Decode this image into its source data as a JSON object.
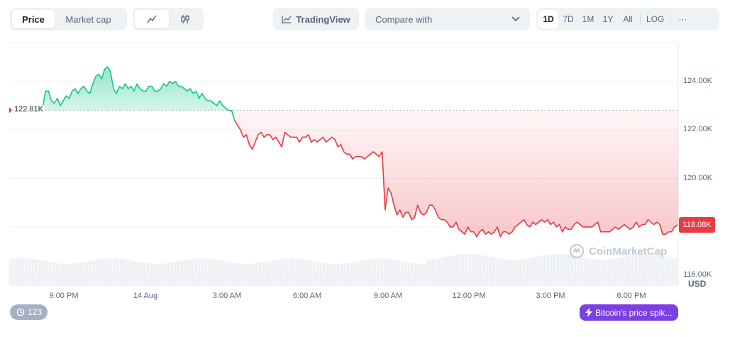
{
  "toolbar": {
    "metric_tabs": [
      {
        "label": "Price",
        "active": true
      },
      {
        "label": "Market cap",
        "active": false
      }
    ],
    "chart_type_icons": [
      "line-chart-icon",
      "candlestick-icon"
    ],
    "tradingview_label": "TradingView",
    "compare_label": "Compare with",
    "ranges": [
      "1D",
      "7D",
      "1M",
      "1Y",
      "All"
    ],
    "active_range": "1D",
    "log_label": "LOG",
    "more_label": "···"
  },
  "chart_data": {
    "type": "line",
    "y_ticks": [
      "124.00K",
      "122.00K",
      "120.00K",
      "118.00K",
      "116.00K"
    ],
    "x_ticks": [
      "9:00 PM",
      "14 Aug",
      "3:00 AM",
      "6:00 AM",
      "9:00 AM",
      "12:00 PM",
      "3:00 PM",
      "6:00 PM"
    ],
    "ylim": [
      115600,
      125600
    ],
    "reference_value": 122810,
    "reference_label": "122.81K",
    "current_value_label": "118.08K",
    "currency": "USD",
    "up_color": "#16c784",
    "down_color": "#ea3943",
    "series": [
      {
        "values": [
          122900,
          123600,
          123600,
          123200,
          123100,
          123300,
          123000,
          123200,
          123400,
          123300,
          123600,
          123700,
          123500,
          123700,
          123800,
          123600,
          123500,
          123900,
          124200,
          124300,
          124100,
          124500,
          124600,
          124400,
          123700,
          123500,
          123800,
          123700,
          123900,
          123700,
          123800,
          123600,
          123900,
          123700,
          123600,
          123600,
          123800,
          123800,
          123600,
          123600,
          123700,
          123900,
          123800,
          124000,
          123900,
          124000,
          123800,
          123800,
          123700,
          123600,
          123700,
          123500,
          123600,
          123300,
          123500,
          123300,
          123200,
          123200,
          123100,
          123000,
          123200,
          123000,
          122900,
          122800,
          122800,
          122400,
          122200,
          122000,
          121700,
          121800,
          121400,
          121200,
          121500,
          121800,
          121900,
          121700,
          121800,
          121800,
          121600,
          121700,
          121500,
          121300,
          121900,
          121800,
          121700,
          121700,
          121700,
          121500,
          121700,
          121700,
          121800,
          121500,
          121600,
          121500,
          121600,
          121700,
          121500,
          121600,
          121700,
          121600,
          121300,
          121400,
          121100,
          121000,
          121000,
          120800,
          120900,
          120900,
          120900,
          120800,
          120900,
          121000,
          121100,
          121000,
          120900,
          121100,
          118700,
          119600,
          119400,
          118900,
          118500,
          118700,
          118400,
          118600,
          118600,
          118300,
          118400,
          118900,
          118600,
          118500,
          118600,
          118900,
          118900,
          118700,
          118400,
          118300,
          118300,
          118200,
          118000,
          118000,
          118200,
          117900,
          117800,
          117700,
          118000,
          117800,
          117800,
          117600,
          117800,
          117900,
          117700,
          117800,
          117700,
          117800,
          118000,
          117600,
          117800,
          117800,
          117700,
          117800,
          118000,
          118100,
          118200,
          118300,
          118100,
          118000,
          118200,
          118100,
          118200,
          118300,
          118200,
          118300,
          118100,
          118200,
          118000,
          118100,
          117800,
          118000,
          117900,
          117900,
          118100,
          118200,
          118100,
          118000,
          118000,
          118000,
          118000,
          118100,
          118200,
          117800,
          117800,
          117800,
          117800,
          117900,
          118000,
          117900,
          118000,
          118100,
          118000,
          117900,
          118000,
          118200,
          118000,
          118100,
          118100,
          118300,
          118200,
          118100,
          118200,
          118100,
          117700,
          117700,
          117800,
          117800,
          118000,
          118080
        ]
      }
    ],
    "volume_note": "light grey volume band at bottom"
  },
  "left_badge": {
    "icon": "history-icon",
    "count": "123"
  },
  "news_badge": {
    "icon": "lightning-icon",
    "text": "Bitcoin's price spik..."
  },
  "watermark": "CoinMarketCap"
}
